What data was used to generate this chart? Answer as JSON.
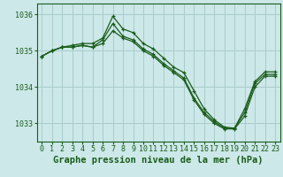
{
  "background_color": "#cce8e8",
  "grid_color": "#aacccc",
  "line_color": "#1a5c1a",
  "marker": "+",
  "xlabel": "Graphe pression niveau de la mer (hPa)",
  "xlabel_fontsize": 7.5,
  "tick_fontsize": 6.0,
  "ylim": [
    1032.5,
    1036.3
  ],
  "yticks": [
    1033,
    1034,
    1035,
    1036
  ],
  "xticks": [
    0,
    1,
    2,
    3,
    4,
    5,
    6,
    7,
    8,
    9,
    10,
    11,
    12,
    13,
    14,
    15,
    16,
    17,
    18,
    19,
    20,
    21,
    22,
    23
  ],
  "series": [
    [
      1034.85,
      1035.0,
      1035.1,
      1035.1,
      1035.15,
      1035.1,
      1035.2,
      1035.55,
      1035.35,
      1035.25,
      1035.0,
      1034.85,
      1034.6,
      1034.4,
      1034.2,
      1033.65,
      1033.25,
      1033.0,
      1032.85,
      1032.85,
      1033.2,
      1034.0,
      1034.3,
      1034.3
    ],
    [
      1034.85,
      1035.0,
      1035.1,
      1035.1,
      1035.15,
      1035.1,
      1035.3,
      1035.75,
      1035.4,
      1035.3,
      1035.05,
      1034.9,
      1034.65,
      1034.45,
      1034.25,
      1033.7,
      1033.3,
      1033.05,
      1032.87,
      1032.87,
      1033.3,
      1034.1,
      1034.35,
      1034.35
    ],
    [
      1034.85,
      1035.0,
      1035.1,
      1035.15,
      1035.2,
      1035.2,
      1035.35,
      1035.95,
      1035.6,
      1035.5,
      1035.2,
      1035.05,
      1034.8,
      1034.55,
      1034.4,
      1033.9,
      1033.4,
      1033.1,
      1032.9,
      1032.87,
      1033.4,
      1034.15,
      1034.42,
      1034.42
    ]
  ]
}
